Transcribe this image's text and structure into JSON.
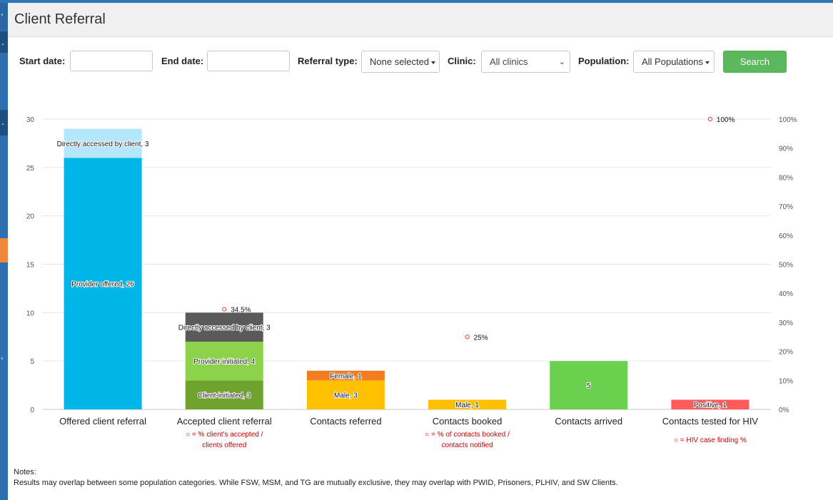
{
  "page": {
    "title": "Client Referral"
  },
  "filters": {
    "start_label": "Start date:",
    "start_value": "",
    "end_label": "End date:",
    "end_value": "",
    "referral_label": "Referral type:",
    "referral_value": "None selected",
    "clinic_label": "Clinic:",
    "clinic_value": "All clinics",
    "population_label": "Population:",
    "population_value": "All Populations",
    "search_label": "Search"
  },
  "colors": {
    "sidebar": "#2f6fb0",
    "sidebar_accent": "#f0883c",
    "search": "#5cb85c",
    "marker": "#e8432e",
    "note_text": "#cc0000"
  },
  "chart_data": {
    "type": "bar",
    "stacked": true,
    "categories": [
      "Offered client referral",
      "Accepted client referral",
      "Contacts referred",
      "Contacts booked",
      "Contacts arrived",
      "Contacts tested for HIV"
    ],
    "y_ticks": [
      "0",
      "5",
      "10",
      "15",
      "20",
      "25",
      "30"
    ],
    "y2_ticks": [
      "0%",
      "10%",
      "20%",
      "30%",
      "40%",
      "50%",
      "60%",
      "70%",
      "80%",
      "90%",
      "100%"
    ],
    "ylim": [
      0,
      30
    ],
    "y2lim": [
      0,
      100
    ],
    "grid": true,
    "segments": [
      {
        "category": 0,
        "label": "Provider offered, 26",
        "value": 26,
        "color": "#00b5e8"
      },
      {
        "category": 0,
        "label": "Directly accessed by client, 3",
        "value": 3,
        "color": "#b4e7fb"
      },
      {
        "category": 1,
        "label": "Client-initiated, 3",
        "value": 3,
        "color": "#6fa32e"
      },
      {
        "category": 1,
        "label": "Provider-initiated, 4",
        "value": 4,
        "color": "#8cd24a"
      },
      {
        "category": 1,
        "label": "Directly accessed by client, 3",
        "value": 3,
        "color": "#5a5a5a"
      },
      {
        "category": 2,
        "label": "Male, 3",
        "value": 3,
        "color": "#ffc000"
      },
      {
        "category": 2,
        "label": "Female, 1",
        "value": 1,
        "color": "#f47c20"
      },
      {
        "category": 3,
        "label": "Male, 1",
        "value": 1,
        "color": "#ffc000"
      },
      {
        "category": 4,
        "label": "5",
        "value": 5,
        "color": "#6ad04e"
      },
      {
        "category": 5,
        "label": "Positive, 1",
        "value": 1,
        "color": "#ff5b5b"
      }
    ],
    "percent_markers": [
      {
        "category": 1,
        "label": "34.5%",
        "value": 34.5
      },
      {
        "category": 3,
        "label": "25%",
        "value": 25
      },
      {
        "category": 5,
        "label": "100%",
        "value": 100
      }
    ],
    "category_notes": [
      {
        "category": 1,
        "lines": [
          "○ = % client's accepted /",
          "clients offered"
        ]
      },
      {
        "category": 3,
        "lines": [
          "○ = % of contacts booked /",
          "contacts notified"
        ]
      },
      {
        "category": 5,
        "lines": [
          "○ = HIV case finding %"
        ]
      }
    ]
  },
  "notes": {
    "heading": "Notes:",
    "text": "Results may overlap between some population categories. While FSW, MSM, and TG are mutually exclusive, they may overlap with PWID, Prisoners, PLHIV, and SW Clients."
  }
}
